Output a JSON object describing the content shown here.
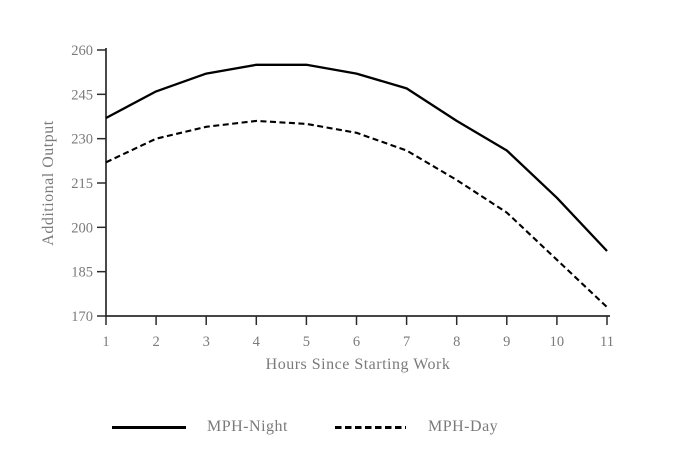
{
  "figure": {
    "background": "#ffffff",
    "text_color": "#7a7a7a",
    "axis_color": "#2b2b2b",
    "series_color": "#000000"
  },
  "chart_data": {
    "type": "line",
    "title": "",
    "xlabel": "Hours Since Starting Work",
    "ylabel": "Additional Output",
    "x": [
      1,
      2,
      3,
      4,
      5,
      6,
      7,
      8,
      9,
      10,
      11
    ],
    "xticks": [
      1,
      2,
      3,
      4,
      5,
      6,
      7,
      8,
      9,
      10,
      11
    ],
    "xlim": [
      1,
      11
    ],
    "ylim": [
      170,
      260
    ],
    "yticks": [
      170,
      185,
      200,
      215,
      230,
      245,
      260
    ],
    "grid": false,
    "legend_position": "bottom",
    "series": [
      {
        "name": "MPH-Night",
        "style": "solid",
        "color": "#000000",
        "values": [
          237,
          246,
          252,
          255,
          255,
          252,
          247,
          236,
          226,
          210,
          192
        ]
      },
      {
        "name": "MPH-Day",
        "style": "dashed",
        "color": "#000000",
        "values": [
          222,
          230,
          234,
          236,
          235,
          232,
          226,
          216,
          205,
          189,
          173
        ]
      }
    ]
  }
}
